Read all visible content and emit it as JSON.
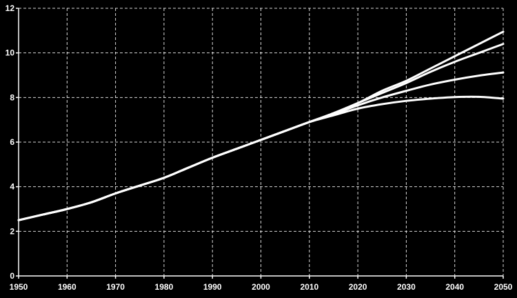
{
  "chart_data": {
    "type": "line",
    "title": "",
    "xlabel": "",
    "ylabel": "",
    "xlim": [
      1950,
      2050
    ],
    "ylim": [
      0,
      12
    ],
    "x_ticks": [
      "1950",
      "1960",
      "1970",
      "1980",
      "1990",
      "2000",
      "2010",
      "2020",
      "2030",
      "2040",
      "2050"
    ],
    "y_ticks": [
      "0",
      "2",
      "4",
      "6",
      "8",
      "10",
      "12"
    ],
    "grid": true,
    "legend": "none",
    "colors": {
      "background": "#000000",
      "line": "#ffffff",
      "text": "#ffffff"
    },
    "x": [
      1950,
      1955,
      1960,
      1965,
      1970,
      1975,
      1980,
      1985,
      1990,
      1995,
      2000,
      2005,
      2010,
      2015,
      2020,
      2025,
      2030,
      2035,
      2040,
      2045,
      2050
    ],
    "series": [
      {
        "values": [
          2.5,
          2.75,
          3.0,
          3.3,
          3.7,
          4.05,
          4.4,
          4.85,
          5.3,
          5.7,
          6.1,
          6.5,
          6.9,
          7.3,
          7.75,
          8.3,
          8.75,
          9.3,
          9.85,
          10.4,
          10.95
        ]
      },
      {
        "values": [
          2.5,
          2.75,
          3.0,
          3.3,
          3.7,
          4.05,
          4.4,
          4.85,
          5.3,
          5.7,
          6.1,
          6.5,
          6.9,
          7.3,
          7.75,
          8.2,
          8.65,
          9.15,
          9.6,
          10.0,
          10.4
        ]
      },
      {
        "values": [
          2.5,
          2.75,
          3.0,
          3.3,
          3.7,
          4.05,
          4.4,
          4.85,
          5.3,
          5.7,
          6.1,
          6.5,
          6.9,
          7.25,
          7.65,
          8.0,
          8.3,
          8.58,
          8.8,
          8.98,
          9.12
        ]
      },
      {
        "values": [
          2.5,
          2.75,
          3.0,
          3.3,
          3.7,
          4.05,
          4.4,
          4.85,
          5.3,
          5.7,
          6.1,
          6.5,
          6.9,
          7.2,
          7.5,
          7.7,
          7.85,
          7.95,
          8.02,
          8.03,
          7.95
        ]
      }
    ]
  }
}
